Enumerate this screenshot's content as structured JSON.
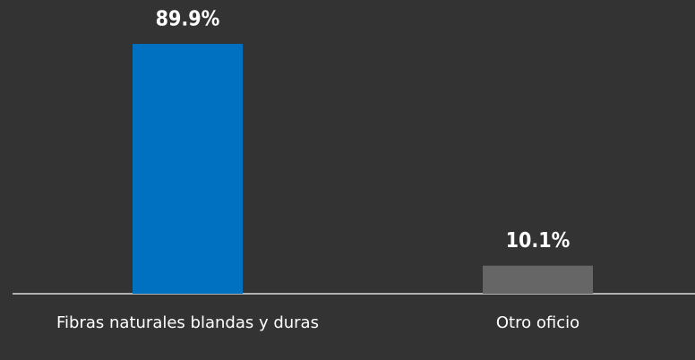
{
  "chart_data": {
    "type": "bar",
    "categories": [
      "Fibras naturales blandas y duras",
      "Otro oficio"
    ],
    "values": [
      89.9,
      10.1
    ],
    "value_labels": [
      "89.9%",
      "10.1%"
    ],
    "colors": [
      "#0070c0",
      "#666666"
    ]
  }
}
